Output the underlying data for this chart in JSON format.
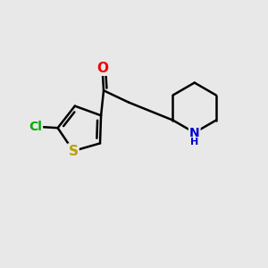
{
  "bg_color": "#e8e8e8",
  "bond_color": "#000000",
  "bond_width": 1.8,
  "atoms": {
    "S": {
      "color": "#b8a000",
      "fontsize": 11
    },
    "Cl": {
      "color": "#00aa00",
      "fontsize": 10
    },
    "O": {
      "color": "#ee0000",
      "fontsize": 11
    },
    "N": {
      "color": "#0000cc",
      "fontsize": 10
    },
    "C": {
      "color": "#000000",
      "fontsize": 10
    }
  }
}
